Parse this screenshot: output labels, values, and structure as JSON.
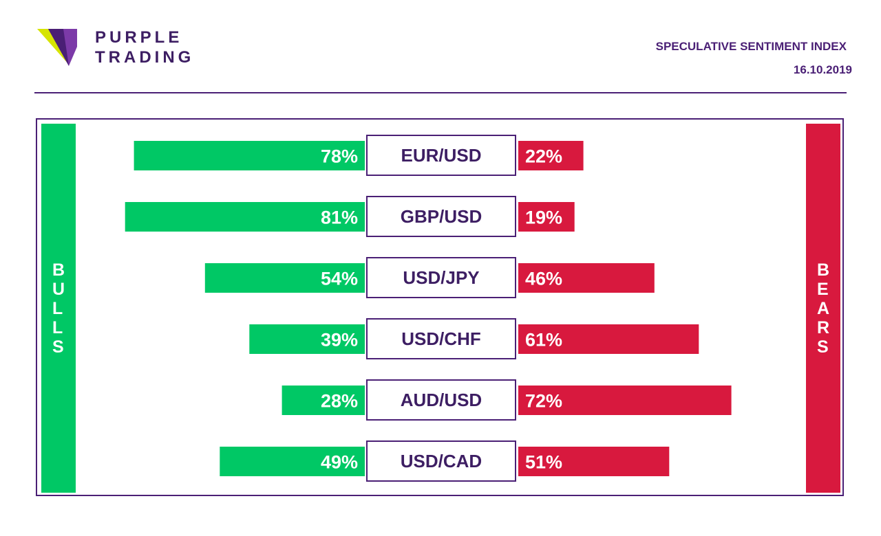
{
  "brand": {
    "line1": "PURPLE",
    "line2": "TRADING",
    "colors": {
      "purple": "#4a1f75",
      "lime": "#d6e400",
      "violet": "#7c3aa8"
    }
  },
  "header": {
    "title": "SPECULATIVE SENTIMENT INDEX",
    "date": "16.10.2019"
  },
  "sides": {
    "bulls": "BULLS",
    "bears": "BEARS",
    "bulls_color": "#00c865",
    "bears_color": "#d8193e"
  },
  "chart_data": {
    "type": "bar",
    "categories": [
      "EUR/USD",
      "GBP/USD",
      "USD/JPY",
      "USD/CHF",
      "AUD/USD",
      "USD/CAD"
    ],
    "series": [
      {
        "values": [
          78,
          81,
          54,
          39,
          28,
          49
        ],
        "labels": [
          "78%",
          "81%",
          "54%",
          "39%",
          "28%",
          "49%"
        ],
        "color": "#00c865"
      },
      {
        "values": [
          22,
          19,
          46,
          61,
          72,
          51
        ],
        "labels": [
          "22%",
          "19%",
          "46%",
          "61%",
          "72%",
          "51%"
        ],
        "color": "#d8193e"
      }
    ],
    "unit": "%"
  }
}
